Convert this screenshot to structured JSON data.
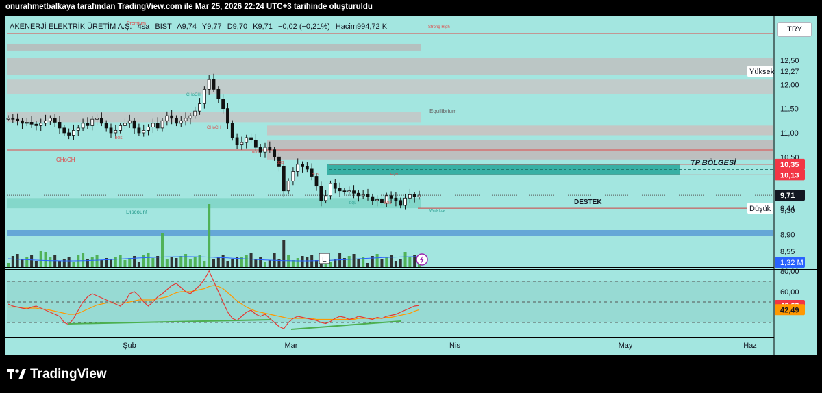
{
  "caption": "onurahmetbalkaya tarafından TradingView.com ile Mar 25, 2026 22:24 UTC+3 tarihinde oluşturuldu",
  "brand": "TradingView",
  "currency_button": "TRY",
  "legend": {
    "name": "AKENERJİ ELEKTRİK ÜRETİM A.Ş.",
    "interval": "4sa",
    "exchange": "BIST",
    "open": "A9,74",
    "high": "Y9,77",
    "low": "D9,70",
    "close": "K9,71",
    "change": "−0,02 (−0,21%)",
    "volume": "Hacim994,72 K"
  },
  "colors": {
    "panel_bg": "#A3E6E0",
    "up": "#1b1b1b",
    "down": "#1b1b1b",
    "volume_up": "#4CAF50",
    "volume_down": "#2a2a2a",
    "price_label_red": "#F23645",
    "price_label_dark": "#131722",
    "volume_label": "#2962FF",
    "rsi_line": "#E53935",
    "rsi_ma": "#FF9800",
    "divergence": "#4CAF50",
    "tp_zone": "#26A69A",
    "blue_band": "#5B9BD5"
  },
  "chart_data": [
    {
      "type": "candlestick",
      "symbol": "AKENERJİ ELEKTRİK ÜRETİM A.Ş.",
      "interval": "4sa",
      "x_tick_labels": [
        "Şub",
        "Mar",
        "Nis",
        "May",
        "Haz"
      ],
      "y_tick_labels": [
        "12,50",
        "12,00",
        "11,50",
        "11,00",
        "10,50",
        "9,30",
        "8,90",
        "8,55"
      ],
      "ylim": [
        8.45,
        12.95
      ],
      "price_labels": [
        {
          "text": "Yüksek",
          "value": 12.27,
          "label": "12,27"
        },
        {
          "text": "",
          "value": 10.35,
          "label": "10,35"
        },
        {
          "text": "",
          "value": 10.13,
          "label": "10,13"
        },
        {
          "text": "",
          "value": 9.71,
          "label": "9,71"
        },
        {
          "text": "Düşük",
          "value": 9.44,
          "label": "9,44"
        }
      ],
      "annotations": [
        {
          "text": "Premium",
          "value": 12.75
        },
        {
          "text": "Strong High",
          "value": 12.75
        },
        {
          "text": "Equilibrium",
          "value": 11.3
        },
        {
          "text": "CHoCH",
          "value": 11.72
        },
        {
          "text": "CHoCH",
          "value": 10.98
        },
        {
          "text": "CHoCH",
          "value": 10.2
        },
        {
          "text": "BOS",
          "value": 10.75
        },
        {
          "text": "BOS",
          "value": 10.38
        },
        {
          "text": "BOS",
          "value": 10.2
        },
        {
          "text": "BOS",
          "value": 9.9
        },
        {
          "text": "BOS",
          "value": 9.46
        },
        {
          "text": "EQH",
          "value": 9.9
        },
        {
          "text": "EQL",
          "value": 9.46
        },
        {
          "text": "Weak Low",
          "value": 9.3
        },
        {
          "text": "Discount",
          "value": 9.32
        },
        {
          "text": "TP BÖLGESİ",
          "value": 10.24
        },
        {
          "text": "DESTEK",
          "value": 9.46
        }
      ],
      "zones": [
        {
          "name": "strong-high",
          "from": 12.7,
          "to": 12.84
        },
        {
          "name": "premium",
          "from": 12.2,
          "to": 12.55
        },
        {
          "name": "premium-2",
          "from": 11.8,
          "to": 12.1
        },
        {
          "name": "equilibrium",
          "from": 11.22,
          "to": 11.43
        },
        {
          "name": "tp-zone",
          "from": 10.13,
          "to": 10.35
        },
        {
          "name": "discount",
          "from": 9.44,
          "to": 9.65
        }
      ],
      "close_series": [
        11.3,
        11.28,
        11.25,
        11.2,
        11.22,
        11.18,
        11.15,
        11.2,
        11.25,
        11.3,
        11.22,
        11.1,
        11.0,
        10.95,
        11.05,
        11.1,
        11.2,
        11.15,
        11.28,
        11.3,
        11.2,
        11.1,
        11.0,
        11.05,
        11.15,
        11.2,
        11.25,
        11.1,
        11.0,
        11.05,
        11.12,
        11.2,
        11.1,
        11.25,
        11.35,
        11.3,
        11.2,
        11.25,
        11.3,
        11.35,
        11.45,
        11.6,
        11.9,
        12.1,
        11.9,
        11.7,
        11.5,
        11.2,
        10.9,
        10.75,
        10.8,
        10.9,
        10.85,
        10.7,
        10.6,
        10.7,
        10.65,
        10.5,
        10.3,
        9.8,
        10.0,
        10.2,
        10.35,
        10.3,
        10.25,
        10.1,
        9.9,
        9.6,
        9.7,
        9.95,
        9.85,
        9.8,
        9.78,
        9.8,
        9.75,
        9.7,
        9.72,
        9.68,
        9.6,
        9.62,
        9.55,
        9.7,
        9.65,
        9.6,
        9.5,
        9.65,
        9.72,
        9.68,
        9.71
      ]
    },
    {
      "type": "bar",
      "name": "Hacim",
      "value_label": "1,32 M"
    },
    {
      "type": "line",
      "name": "RSI",
      "y_tick_labels": [
        "80,00",
        "60,00"
      ],
      "ylim": [
        15,
        90
      ],
      "series": [
        {
          "name": "",
          "last": 46.63,
          "label": "46,63"
        },
        {
          "name": "",
          "last": 42.49,
          "label": "42,49"
        }
      ],
      "rsi_series": [
        48,
        46,
        45,
        44,
        43,
        45,
        46,
        44,
        42,
        40,
        38,
        36,
        30,
        28,
        34,
        42,
        50,
        55,
        58,
        56,
        54,
        52,
        50,
        48,
        46,
        50,
        58,
        60,
        56,
        50,
        46,
        50,
        55,
        58,
        62,
        66,
        68,
        64,
        60,
        58,
        62,
        66,
        72,
        80,
        70,
        60,
        50,
        40,
        34,
        32,
        36,
        40,
        42,
        38,
        36,
        38,
        34,
        30,
        26,
        24,
        30,
        34,
        36,
        35,
        34,
        33,
        32,
        30,
        29,
        31,
        34,
        36,
        35,
        33,
        34,
        36,
        35,
        34,
        33,
        35,
        34,
        36,
        37,
        38,
        40,
        42,
        44,
        46,
        46.63
      ],
      "ma_series": [
        45,
        45,
        45,
        44,
        44,
        44,
        44,
        43,
        43,
        42,
        41,
        40,
        39,
        38,
        38,
        39,
        41,
        43,
        45,
        47,
        48,
        49,
        49,
        49,
        49,
        49,
        50,
        51,
        52,
        52,
        52,
        52,
        53,
        54,
        55,
        57,
        59,
        60,
        60,
        60,
        61,
        62,
        63,
        65,
        66,
        65,
        63,
        59,
        55,
        51,
        48,
        45,
        43,
        41,
        40,
        39,
        38,
        37,
        36,
        35,
        34,
        34,
        34,
        34,
        34,
        34,
        33,
        33,
        33,
        33,
        33,
        33,
        33,
        33,
        33,
        34,
        34,
        34,
        34,
        34,
        34,
        35,
        35,
        36,
        37,
        38,
        39,
        41,
        42.49
      ]
    }
  ]
}
